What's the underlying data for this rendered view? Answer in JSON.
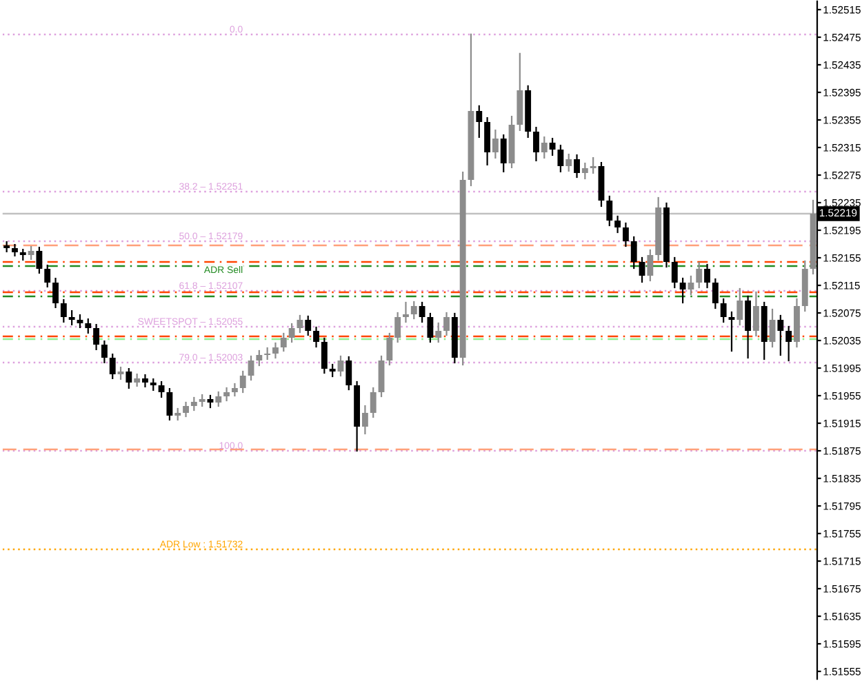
{
  "chart_data": {
    "type": "candlestick",
    "categories": [
      null,
      null,
      null,
      null,
      null,
      null,
      null,
      null,
      null,
      null,
      null,
      null,
      null,
      null,
      null,
      null,
      null,
      null,
      null,
      null,
      null,
      null,
      null,
      null,
      null,
      null,
      null,
      null,
      null,
      null,
      null,
      null,
      null,
      null,
      null,
      null,
      null,
      null,
      null,
      null,
      null,
      null,
      null,
      null,
      null,
      null,
      null,
      null,
      null,
      null,
      null,
      null,
      null,
      null,
      null,
      null,
      null,
      null,
      null,
      null,
      null,
      null,
      null,
      null,
      null,
      null,
      null,
      null,
      null,
      null,
      null,
      null,
      null,
      null,
      null,
      null,
      null,
      null,
      null,
      null,
      null,
      null,
      null,
      null,
      null,
      null,
      null,
      null,
      null,
      null,
      null,
      null,
      null,
      null,
      null,
      null,
      null,
      null,
      null,
      null
    ],
    "ohlc": [
      [
        1.52173,
        1.52178,
        1.52164,
        1.52169
      ],
      [
        1.52169,
        1.52174,
        1.52158,
        1.52163
      ],
      [
        1.52163,
        1.52167,
        1.52152,
        1.52159
      ],
      [
        1.52159,
        1.52171,
        1.52153,
        1.52165
      ],
      [
        1.52165,
        1.5217,
        1.52133,
        1.52139
      ],
      [
        1.52139,
        1.52144,
        1.52113,
        1.52119
      ],
      [
        1.52119,
        1.52125,
        1.52083,
        1.52089
      ],
      [
        1.52089,
        1.52094,
        1.52062,
        1.52069
      ],
      [
        1.52069,
        1.52078,
        1.52058,
        1.52065
      ],
      [
        1.52065,
        1.52072,
        1.52054,
        1.5206
      ],
      [
        1.5206,
        1.52066,
        1.52046,
        1.52053
      ],
      [
        1.52053,
        1.52058,
        1.52022,
        1.52029
      ],
      [
        1.52029,
        1.52034,
        1.52003,
        1.5201
      ],
      [
        1.5201,
        1.52015,
        1.5198,
        1.51986
      ],
      [
        1.51986,
        1.51996,
        1.51979,
        1.5199
      ],
      [
        1.5199,
        1.51994,
        1.51966,
        1.51974
      ],
      [
        1.51974,
        1.51986,
        1.51969,
        1.5198
      ],
      [
        1.5198,
        1.51985,
        1.51968,
        1.51974
      ],
      [
        1.51974,
        1.51979,
        1.51963,
        1.5197
      ],
      [
        1.5197,
        1.51975,
        1.51953,
        1.5196
      ],
      [
        1.5196,
        1.51965,
        1.5192,
        1.51926
      ],
      [
        1.51926,
        1.51936,
        1.5192,
        1.5193
      ],
      [
        1.5193,
        1.51945,
        1.51925,
        1.5194
      ],
      [
        1.5194,
        1.51952,
        1.51934,
        1.51946
      ],
      [
        1.51946,
        1.51956,
        1.5194,
        1.5195
      ],
      [
        1.5195,
        1.51955,
        1.51938,
        1.51945
      ],
      [
        1.51945,
        1.5196,
        1.5194,
        1.51954
      ],
      [
        1.51954,
        1.51966,
        1.51948,
        1.5196
      ],
      [
        1.5196,
        1.51972,
        1.51955,
        1.51966
      ],
      [
        1.51966,
        1.5199,
        1.5196,
        1.51984
      ],
      [
        1.51984,
        1.52012,
        1.51978,
        1.52006
      ],
      [
        1.52006,
        1.5202,
        1.51999,
        1.52014
      ],
      [
        1.52014,
        1.52024,
        1.52008,
        1.52016
      ],
      [
        1.52016,
        1.52031,
        1.5201,
        1.52025
      ],
      [
        1.52025,
        1.52045,
        1.5202,
        1.52039
      ],
      [
        1.52039,
        1.52059,
        1.52033,
        1.52053
      ],
      [
        1.52053,
        1.52071,
        1.52047,
        1.52065
      ],
      [
        1.52065,
        1.5207,
        1.52043,
        1.52049
      ],
      [
        1.52049,
        1.52054,
        1.52026,
        1.52033
      ],
      [
        1.52033,
        1.52038,
        1.51988,
        1.51994
      ],
      [
        1.51994,
        1.52,
        1.51983,
        1.5199
      ],
      [
        1.5199,
        1.52012,
        1.51984,
        1.52006
      ],
      [
        1.52006,
        1.52011,
        1.51964,
        1.5197
      ],
      [
        1.5197,
        1.51975,
        1.51875,
        1.5191
      ],
      [
        1.5191,
        1.5194,
        1.519,
        1.5193
      ],
      [
        1.5193,
        1.51966,
        1.51924,
        1.5196
      ],
      [
        1.5196,
        1.52012,
        1.51954,
        1.52006
      ],
      [
        1.52006,
        1.52045,
        1.52,
        1.52039
      ],
      [
        1.52039,
        1.52075,
        1.52033,
        1.52069
      ],
      [
        1.52069,
        1.5209,
        1.52062,
        1.52073
      ],
      [
        1.52073,
        1.52091,
        1.52067,
        1.52085
      ],
      [
        1.52085,
        1.5209,
        1.52062,
        1.52069
      ],
      [
        1.52069,
        1.52074,
        1.52033,
        1.52039
      ],
      [
        1.52039,
        1.5206,
        1.52033,
        1.52049
      ],
      [
        1.52049,
        1.52075,
        1.52043,
        1.52069
      ],
      [
        1.52069,
        1.52074,
        1.52003,
        1.5201
      ],
      [
        1.5201,
        1.52279,
        1.52,
        1.52268
      ],
      [
        1.52268,
        1.52479,
        1.5226,
        1.52368
      ],
      [
        1.52368,
        1.52375,
        1.5233,
        1.52352
      ],
      [
        1.52352,
        1.52358,
        1.5229,
        1.52308
      ],
      [
        1.52308,
        1.5234,
        1.523,
        1.52328
      ],
      [
        1.52328,
        1.52333,
        1.5228,
        1.52292
      ],
      [
        1.52292,
        1.5236,
        1.52286,
        1.52348
      ],
      [
        1.52348,
        1.52451,
        1.5234,
        1.52398
      ],
      [
        1.52398,
        1.52404,
        1.5233,
        1.52338
      ],
      [
        1.52338,
        1.52344,
        1.52296,
        1.52308
      ],
      [
        1.52308,
        1.5233,
        1.523,
        1.52322
      ],
      [
        1.52322,
        1.52328,
        1.52304,
        1.52312
      ],
      [
        1.52312,
        1.52318,
        1.5228,
        1.52288
      ],
      [
        1.52288,
        1.52305,
        1.52281,
        1.52298
      ],
      [
        1.52298,
        1.52304,
        1.52272,
        1.52278
      ],
      [
        1.52278,
        1.52292,
        1.5227,
        1.52285
      ],
      [
        1.52285,
        1.523,
        1.52278,
        1.52288
      ],
      [
        1.52288,
        1.52293,
        1.5223,
        1.52238
      ],
      [
        1.52238,
        1.52244,
        1.52202,
        1.52209
      ],
      [
        1.52209,
        1.52215,
        1.52192,
        1.52199
      ],
      [
        1.52199,
        1.52205,
        1.52172,
        1.52179
      ],
      [
        1.52179,
        1.52185,
        1.5214,
        1.52149
      ],
      [
        1.52149,
        1.52155,
        1.5212,
        1.52129
      ],
      [
        1.52129,
        1.52166,
        1.52122,
        1.52159
      ],
      [
        1.52159,
        1.52242,
        1.52152,
        1.52228
      ],
      [
        1.52228,
        1.52234,
        1.52142,
        1.52149
      ],
      [
        1.52149,
        1.52155,
        1.52112,
        1.52119
      ],
      [
        1.52119,
        1.52125,
        1.5209,
        1.52109
      ],
      [
        1.52109,
        1.52128,
        1.52102,
        1.52119
      ],
      [
        1.52119,
        1.52148,
        1.52112,
        1.52139
      ],
      [
        1.52139,
        1.52145,
        1.52112,
        1.52119
      ],
      [
        1.52119,
        1.52124,
        1.52082,
        1.52089
      ],
      [
        1.52089,
        1.52095,
        1.52062,
        1.52069
      ],
      [
        1.52069,
        1.52076,
        1.5202,
        1.52065
      ],
      [
        1.52065,
        1.5211,
        1.52058,
        1.52093
      ],
      [
        1.52093,
        1.52099,
        1.5201,
        1.52049
      ],
      [
        1.52049,
        1.52105,
        1.52042,
        1.52085
      ],
      [
        1.52085,
        1.5209,
        1.52008,
        1.52033
      ],
      [
        1.52033,
        1.5208,
        1.52026,
        1.52065
      ],
      [
        1.52065,
        1.52071,
        1.52014,
        1.52049
      ],
      [
        1.52049,
        1.52055,
        1.52006,
        1.52033
      ],
      [
        1.52033,
        1.52095,
        1.52026,
        1.52085
      ],
      [
        1.52085,
        1.5215,
        1.52078,
        1.52139
      ],
      [
        1.52139,
        1.52238,
        1.52132,
        1.52219
      ]
    ],
    "ylim": [
      1.51544,
      1.52527
    ],
    "annotations": [
      {
        "text": "0.0",
        "y": 1.52479
      },
      {
        "text": "100.0",
        "y": 1.51875
      }
    ],
    "yticks": [
      1.52515,
      1.52475,
      1.52435,
      1.52395,
      1.52355,
      1.52315,
      1.52275,
      1.52235,
      1.52195,
      1.52155,
      1.52115,
      1.52075,
      1.52035,
      1.51995,
      1.51955,
      1.51915,
      1.51875,
      1.51835,
      1.51795,
      1.51755,
      1.51715,
      1.51675,
      1.51635,
      1.51595,
      1.51555
    ],
    "ref_lines": [
      {
        "axis": "y",
        "value": 1.52219,
        "label": "1.52219",
        "color": "#c0c0c0",
        "line_style": "solid"
      },
      {
        "axis": "y",
        "value": 1.52479,
        "color": "#dda0dd",
        "line_style": "dotted"
      },
      {
        "axis": "y",
        "value": 1.52251,
        "label": "38.2 – 1.52251",
        "color": "#dda0dd",
        "line_style": "dotted"
      },
      {
        "axis": "y",
        "value": 1.52179,
        "label": "50.0 – 1.52179",
        "color": "#dda0dd",
        "line_style": "dotted"
      },
      {
        "axis": "y",
        "value": 1.52107,
        "label": "61.8 – 1.52107",
        "color": "#dda0dd",
        "line_style": "dotted"
      },
      {
        "axis": "y",
        "value": 1.52055,
        "label": "SWEETSPOT – 1.52055",
        "color": "#dda0dd",
        "line_style": "dotted"
      },
      {
        "axis": "y",
        "value": 1.52003,
        "label": "79.0 – 1.52003",
        "color": "#dda0dd",
        "line_style": "dotted"
      },
      {
        "axis": "y",
        "value": 1.51875,
        "color": "#dda0dd",
        "line_style": "dotted"
      },
      {
        "axis": "y",
        "value": 1.51732,
        "label": "ADR Low : 1.51732",
        "color": "#ffa500",
        "line_style": "dotted"
      },
      {
        "axis": "y",
        "value": 1.52173,
        "color": "#ffa07a",
        "line_style": "dashed"
      },
      {
        "axis": "y",
        "value": 1.51877,
        "color": "#ffa07a",
        "line_style": "dashed"
      },
      {
        "axis": "y",
        "value": 1.52149,
        "color": "#ff4500",
        "line_style": "dashdot"
      },
      {
        "axis": "y",
        "value": 1.52143,
        "label": "ADR Sell",
        "color": "#228b22",
        "line_style": "dashdot"
      },
      {
        "axis": "y",
        "value": 1.52105,
        "color": "#ff4500",
        "line_style": "dashdot"
      },
      {
        "axis": "y",
        "value": 1.52099,
        "color": "#228b22",
        "line_style": "dashdot"
      },
      {
        "axis": "y",
        "value": 1.52041,
        "color": "#ff4500",
        "line_style": "dashdot"
      },
      {
        "axis": "y",
        "value": 1.52037,
        "color": "#90ee90",
        "line_style": "dashdot"
      }
    ]
  }
}
